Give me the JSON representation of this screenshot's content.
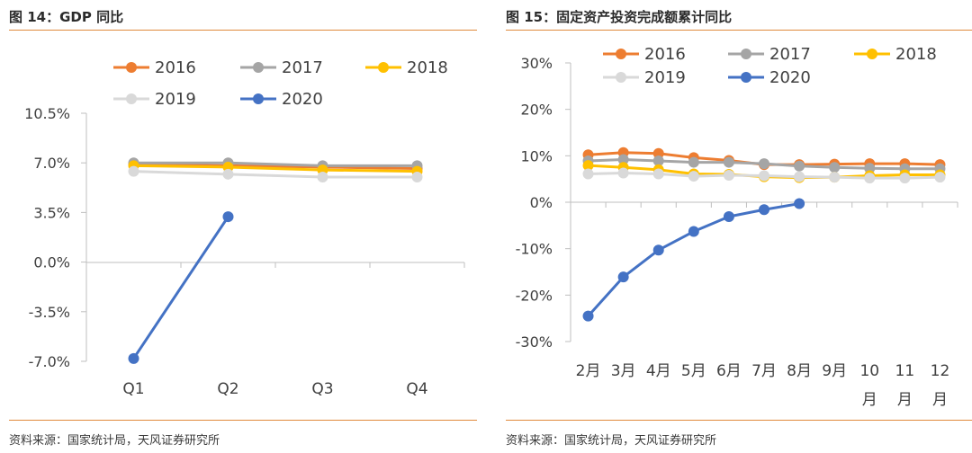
{
  "left_panel": {
    "title": "图 14：GDP 同比",
    "source": "资料来源：国家统计局，天风证券研究所"
  },
  "right_panel": {
    "title": "图 15：固定资产投资完成额累计同比",
    "source": "资料来源：国家统计局，天风证券研究所"
  },
  "chart_data": [
    {
      "type": "line",
      "title": "GDP 同比",
      "categories": [
        "Q1",
        "Q2",
        "Q3",
        "Q4"
      ],
      "ylim": [
        -7.0,
        10.5
      ],
      "yticks": [
        "10.5%",
        "7.0%",
        "3.5%",
        "0.0%",
        "-3.5%",
        "-7.0%"
      ],
      "ytick_values": [
        10.5,
        7.0,
        3.5,
        0.0,
        -3.5,
        -7.0
      ],
      "grid": false,
      "legend_position": "top",
      "series": [
        {
          "name": "2016",
          "color": "#ed7d31",
          "values": [
            6.9,
            6.8,
            6.7,
            6.6
          ]
        },
        {
          "name": "2017",
          "color": "#a5a5a5",
          "values": [
            7.0,
            7.0,
            6.8,
            6.8
          ]
        },
        {
          "name": "2018",
          "color": "#ffc000",
          "values": [
            6.8,
            6.7,
            6.5,
            6.4
          ]
        },
        {
          "name": "2019",
          "color": "#d9d9d9",
          "values": [
            6.4,
            6.2,
            6.0,
            6.0
          ]
        },
        {
          "name": "2020",
          "color": "#4472c4",
          "values": [
            -6.8,
            3.2,
            null,
            null
          ]
        }
      ]
    },
    {
      "type": "line",
      "title": "固定资产投资完成额累计同比",
      "categories": [
        "2月",
        "3月",
        "4月",
        "5月",
        "6月",
        "7月",
        "8月",
        "9月",
        "10月",
        "11月",
        "12月"
      ],
      "ylim": [
        -30,
        30
      ],
      "yticks": [
        "30%",
        "20%",
        "10%",
        "0%",
        "-10%",
        "-20%",
        "-30%"
      ],
      "ytick_values": [
        30,
        20,
        10,
        0,
        -10,
        -20,
        -30
      ],
      "grid": false,
      "legend_position": "top",
      "series": [
        {
          "name": "2016",
          "color": "#ed7d31",
          "values": [
            10.2,
            10.7,
            10.5,
            9.6,
            9.0,
            8.1,
            8.1,
            8.2,
            8.3,
            8.3,
            8.1
          ]
        },
        {
          "name": "2017",
          "color": "#a5a5a5",
          "values": [
            8.9,
            9.2,
            8.9,
            8.6,
            8.6,
            8.3,
            7.8,
            7.5,
            7.3,
            7.2,
            7.2
          ]
        },
        {
          "name": "2018",
          "color": "#ffc000",
          "values": [
            7.9,
            7.5,
            7.0,
            6.1,
            6.0,
            5.5,
            5.3,
            5.4,
            5.7,
            5.9,
            5.9
          ]
        },
        {
          "name": "2019",
          "color": "#d9d9d9",
          "values": [
            6.1,
            6.3,
            6.1,
            5.6,
            5.8,
            5.7,
            5.5,
            5.4,
            5.2,
            5.2,
            5.4
          ]
        },
        {
          "name": "2020",
          "color": "#4472c4",
          "values": [
            -24.5,
            -16.1,
            -10.3,
            -6.3,
            -3.1,
            -1.6,
            -0.3,
            null,
            null,
            null,
            null
          ]
        }
      ]
    }
  ]
}
